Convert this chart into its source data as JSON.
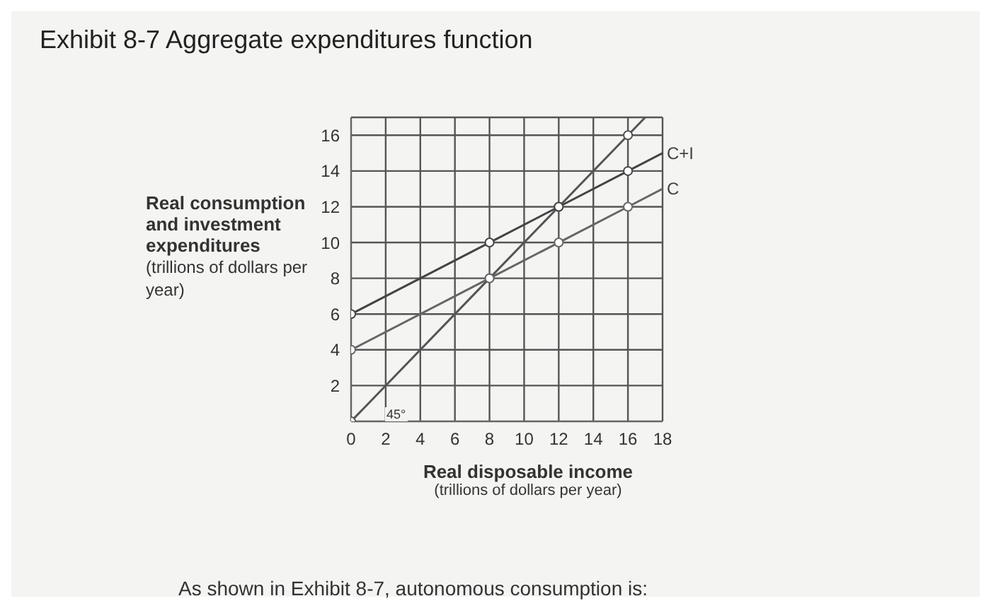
{
  "chart_data": {
    "type": "line",
    "title": "Exhibit 8-7 Aggregate expenditures function",
    "ylabel": "Real consumption and investment expenditures (trillions of dollars per year)",
    "xlabel": "Real disposable income (trillions of dollars per year)",
    "xlim": [
      0,
      18
    ],
    "xticks": [
      0,
      2,
      4,
      6,
      8,
      10,
      12,
      14,
      16,
      18
    ],
    "ylim": [
      0,
      17
    ],
    "yticks": [
      {
        "value": 0,
        "label": null
      },
      2,
      4,
      6,
      8,
      10,
      12,
      14,
      16
    ],
    "grid": true,
    "legend": false,
    "marker": "circle",
    "line_style": "solid",
    "series": [
      {
        "color": "#555555",
        "x": [
          0,
          8,
          12,
          16,
          17
        ],
        "values": [
          0,
          8,
          12,
          16,
          17
        ]
      },
      {
        "name": "C+I",
        "color": "#444444",
        "x": [
          0,
          8,
          12,
          16,
          18
        ],
        "values": [
          6,
          10,
          12,
          14,
          15
        ]
      },
      {
        "name": "C",
        "color": "#666666",
        "x": [
          0,
          8,
          12,
          16,
          18
        ],
        "values": [
          4,
          8,
          10,
          12,
          13
        ]
      }
    ],
    "annotations": [
      "45°",
      "As shown in Exhibit 8-7, autonomous consumption is:"
    ]
  }
}
